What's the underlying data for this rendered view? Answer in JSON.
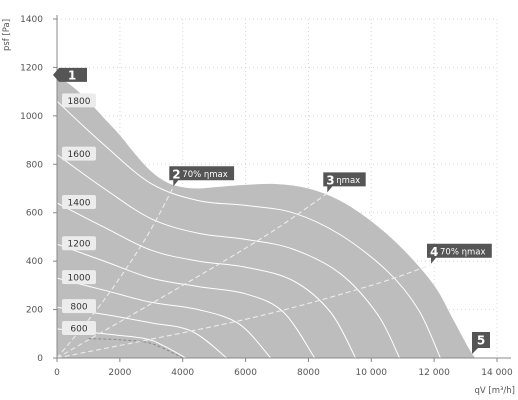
{
  "chart_data": {
    "type": "area",
    "xlabel": "qV [m³/h]",
    "ylabel": "psf [Pa]",
    "xlim": [
      0,
      14000
    ],
    "ylim": [
      0,
      1400
    ],
    "x_ticks": [
      0,
      2000,
      4000,
      6000,
      8000,
      10000,
      12000,
      14000
    ],
    "x_tick_labels": [
      "0",
      "2000",
      "4000",
      "6000",
      "8000",
      "10 000",
      "12 000",
      "14 000"
    ],
    "y_ticks": [
      0,
      200,
      400,
      600,
      800,
      1000,
      1200,
      1400
    ],
    "y_tick_labels": [
      "0",
      "200",
      "400",
      "600",
      "800",
      "1000",
      "1200",
      "1400"
    ],
    "grid": true,
    "colors": {
      "area": "#bdbdbd",
      "curve": "#ffffff",
      "marker": "#555555",
      "grid": "#d8d8d8"
    },
    "envelope": [
      [
        0,
        1165
      ],
      [
        500,
        1120
      ],
      [
        1000,
        1060
      ],
      [
        1500,
        990
      ],
      [
        2000,
        920
      ],
      [
        2500,
        840
      ],
      [
        3000,
        770
      ],
      [
        3500,
        725
      ],
      [
        4000,
        705
      ],
      [
        4500,
        700
      ],
      [
        5000,
        705
      ],
      [
        6000,
        715
      ],
      [
        7000,
        718
      ],
      [
        8000,
        700
      ],
      [
        9000,
        650
      ],
      [
        10000,
        565
      ],
      [
        11000,
        450
      ],
      [
        12000,
        300
      ],
      [
        12600,
        160
      ],
      [
        13100,
        40
      ],
      [
        13300,
        0
      ]
    ],
    "speed_curves": [
      {
        "label": "1800",
        "points": [
          [
            0,
            1060
          ],
          [
            1500,
            880
          ],
          [
            3000,
            720
          ],
          [
            4500,
            650
          ],
          [
            6000,
            630
          ],
          [
            7500,
            600
          ],
          [
            9000,
            510
          ],
          [
            10500,
            360
          ],
          [
            11500,
            200
          ],
          [
            12200,
            0
          ]
        ]
      },
      {
        "label": "1600",
        "points": [
          [
            0,
            840
          ],
          [
            1500,
            700
          ],
          [
            3000,
            575
          ],
          [
            4500,
            515
          ],
          [
            6000,
            490
          ],
          [
            7500,
            450
          ],
          [
            9000,
            350
          ],
          [
            10200,
            180
          ],
          [
            10900,
            0
          ]
        ]
      },
      {
        "label": "1400",
        "points": [
          [
            0,
            640
          ],
          [
            1500,
            540
          ],
          [
            3000,
            445
          ],
          [
            4500,
            400
          ],
          [
            6000,
            375
          ],
          [
            7500,
            320
          ],
          [
            8700,
            190
          ],
          [
            9500,
            0
          ]
        ]
      },
      {
        "label": "1200",
        "points": [
          [
            0,
            470
          ],
          [
            1500,
            400
          ],
          [
            3000,
            330
          ],
          [
            4500,
            295
          ],
          [
            6000,
            265
          ],
          [
            7200,
            190
          ],
          [
            8200,
            0
          ]
        ]
      },
      {
        "label": "1000",
        "points": [
          [
            0,
            330
          ],
          [
            1500,
            280
          ],
          [
            3000,
            230
          ],
          [
            4500,
            200
          ],
          [
            5800,
            140
          ],
          [
            6800,
            0
          ]
        ]
      },
      {
        "label": "800",
        "points": [
          [
            0,
            210
          ],
          [
            1500,
            180
          ],
          [
            3000,
            145
          ],
          [
            4300,
            110
          ],
          [
            5400,
            0
          ]
        ]
      },
      {
        "label": "600",
        "points": [
          [
            0,
            120
          ],
          [
            1500,
            100
          ],
          [
            2800,
            80
          ],
          [
            3400,
            50
          ],
          [
            4100,
            0
          ]
        ]
      }
    ],
    "efficiency_lines": [
      {
        "label": "70% ηmax",
        "points": [
          [
            0,
            0
          ],
          [
            1500,
            240
          ],
          [
            2800,
            490
          ],
          [
            3700,
            705
          ]
        ]
      },
      {
        "label": "ηmax",
        "points": [
          [
            0,
            0
          ],
          [
            4000,
            300
          ],
          [
            6700,
            510
          ],
          [
            8600,
            680
          ]
        ]
      },
      {
        "label": "70% ηmax",
        "points": [
          [
            0,
            0
          ],
          [
            6000,
            160
          ],
          [
            10000,
            300
          ],
          [
            11900,
            385
          ]
        ]
      }
    ],
    "inner_boundary": [
      [
        1000,
        80
      ],
      [
        2000,
        75
      ],
      [
        3000,
        60
      ],
      [
        4000,
        0
      ]
    ],
    "markers": [
      {
        "id": "1",
        "text": "",
        "x": 0,
        "y": 1165
      },
      {
        "id": "2",
        "text": "70% ηmax",
        "x": 3700,
        "y": 705
      },
      {
        "id": "3",
        "text": "ηmax",
        "x": 8600,
        "y": 680
      },
      {
        "id": "4",
        "text": "70% ηmax",
        "x": 11900,
        "y": 385
      },
      {
        "id": "5",
        "text": "",
        "x": 13300,
        "y": 0
      }
    ]
  }
}
